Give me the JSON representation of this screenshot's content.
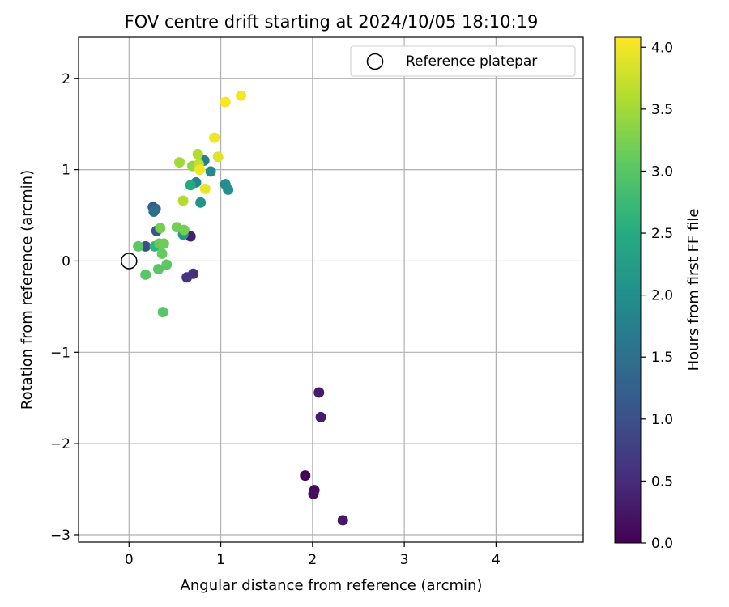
{
  "chart_data": {
    "type": "scatter",
    "title": "FOV centre drift starting at 2024/10/05 18:10:19",
    "xlabel": "Angular distance from reference (arcmin)",
    "ylabel": "Rotation from reference (arcmin)",
    "xlim": [
      -0.55,
      4.95
    ],
    "ylim": [
      -3.08,
      2.45
    ],
    "xticks": [
      0,
      1,
      2,
      3,
      4
    ],
    "yticks": [
      2,
      1,
      0,
      -1,
      -2,
      -3
    ],
    "xtick_labels": [
      "0",
      "1",
      "2",
      "3",
      "4"
    ],
    "ytick_labels": [
      "2",
      "1",
      "0",
      "−1",
      "−2",
      "−3"
    ],
    "grid": true,
    "legend": {
      "placement": "top-right",
      "entries": [
        "Reference platepar"
      ]
    },
    "reference_point": {
      "x": 0,
      "y": 0
    },
    "colorbar": {
      "label": "Hours from first FF file",
      "colormap": "viridis",
      "range": [
        0.0,
        4.08
      ],
      "ticks": [
        0.0,
        0.5,
        1.0,
        1.5,
        2.0,
        2.5,
        3.0,
        3.5,
        4.0
      ],
      "tick_labels": [
        "0.0",
        "0.5",
        "1.0",
        "1.5",
        "2.0",
        "2.5",
        "3.0",
        "3.5",
        "4.0"
      ]
    },
    "points": [
      {
        "x": 1.92,
        "y": -2.35,
        "hours": 0.05
      },
      {
        "x": 2.02,
        "y": -2.51,
        "hours": 0.1
      },
      {
        "x": 2.01,
        "y": -2.55,
        "hours": 0.15
      },
      {
        "x": 2.33,
        "y": -2.84,
        "hours": 0.25
      },
      {
        "x": 2.07,
        "y": -1.44,
        "hours": 0.3
      },
      {
        "x": 2.09,
        "y": -1.71,
        "hours": 0.3
      },
      {
        "x": 0.67,
        "y": 0.27,
        "hours": 0.35
      },
      {
        "x": 0.7,
        "y": -0.14,
        "hours": 0.55
      },
      {
        "x": 0.63,
        "y": -0.18,
        "hours": 0.6
      },
      {
        "x": 0.18,
        "y": 0.16,
        "hours": 0.95
      },
      {
        "x": 0.3,
        "y": 0.33,
        "hours": 1.1
      },
      {
        "x": 0.26,
        "y": 0.59,
        "hours": 1.2
      },
      {
        "x": 0.29,
        "y": 0.57,
        "hours": 1.3
      },
      {
        "x": 0.27,
        "y": 0.54,
        "hours": 1.5
      },
      {
        "x": 0.82,
        "y": 1.1,
        "hours": 1.75
      },
      {
        "x": 0.73,
        "y": 0.86,
        "hours": 1.85
      },
      {
        "x": 0.89,
        "y": 0.98,
        "hours": 1.9
      },
      {
        "x": 1.05,
        "y": 0.84,
        "hours": 1.95
      },
      {
        "x": 1.08,
        "y": 0.78,
        "hours": 2.0
      },
      {
        "x": 0.78,
        "y": 0.64,
        "hours": 2.1
      },
      {
        "x": 0.59,
        "y": 0.29,
        "hours": 2.2
      },
      {
        "x": 0.67,
        "y": 0.83,
        "hours": 2.45
      },
      {
        "x": 0.28,
        "y": 0.16,
        "hours": 2.65
      },
      {
        "x": 0.1,
        "y": 0.16,
        "hours": 3.05
      },
      {
        "x": 0.18,
        "y": -0.15,
        "hours": 3.0
      },
      {
        "x": 0.32,
        "y": -0.09,
        "hours": 3.0
      },
      {
        "x": 0.41,
        "y": -0.04,
        "hours": 3.05
      },
      {
        "x": 0.37,
        "y": -0.56,
        "hours": 3.0
      },
      {
        "x": 0.36,
        "y": 0.08,
        "hours": 3.1
      },
      {
        "x": 0.33,
        "y": 0.19,
        "hours": 3.1
      },
      {
        "x": 0.38,
        "y": 0.19,
        "hours": 3.15
      },
      {
        "x": 0.34,
        "y": 0.36,
        "hours": 3.2
      },
      {
        "x": 0.52,
        "y": 0.37,
        "hours": 3.2
      },
      {
        "x": 0.6,
        "y": 0.34,
        "hours": 3.2
      },
      {
        "x": 0.69,
        "y": 1.04,
        "hours": 3.4
      },
      {
        "x": 0.55,
        "y": 1.08,
        "hours": 3.5
      },
      {
        "x": 0.59,
        "y": 0.66,
        "hours": 3.6
      },
      {
        "x": 0.75,
        "y": 1.17,
        "hours": 3.6
      },
      {
        "x": 0.76,
        "y": 1.06,
        "hours": 3.7
      },
      {
        "x": 0.97,
        "y": 1.14,
        "hours": 3.9
      },
      {
        "x": 0.83,
        "y": 0.79,
        "hours": 3.95
      },
      {
        "x": 0.93,
        "y": 1.35,
        "hours": 4.0
      },
      {
        "x": 0.77,
        "y": 1.0,
        "hours": 4.0
      },
      {
        "x": 1.05,
        "y": 1.74,
        "hours": 4.05
      },
      {
        "x": 1.22,
        "y": 1.81,
        "hours": 4.05
      }
    ]
  }
}
